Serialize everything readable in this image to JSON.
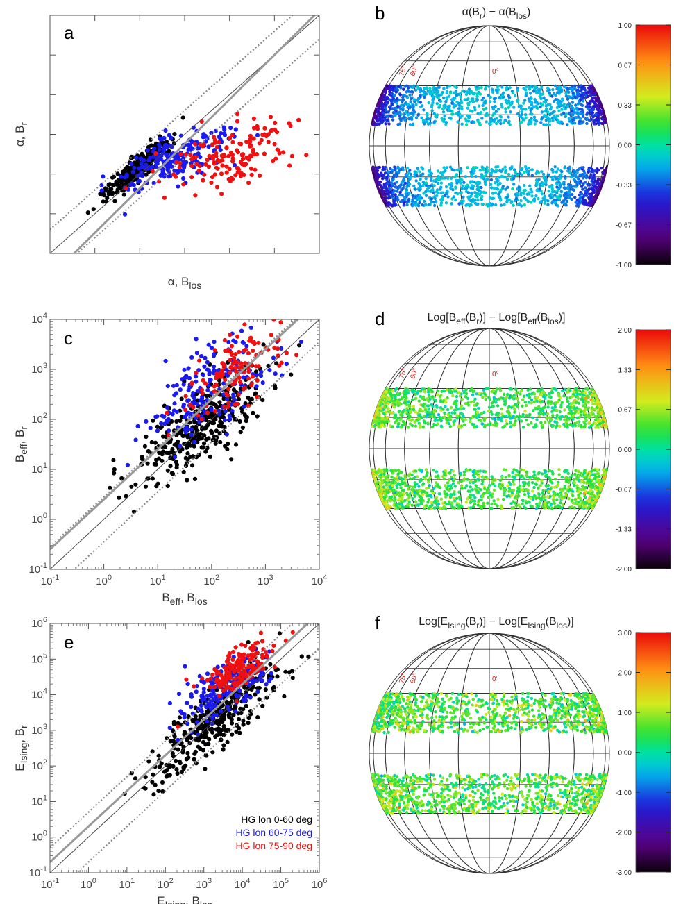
{
  "chart_data": [
    {
      "panel": "a",
      "type": "scatter",
      "xlabel_main": "α, B",
      "xlabel_sub": "los",
      "ylabel_main": "α, B",
      "ylabel_sub": "r",
      "xlim": [
        0.5,
        3.5
      ],
      "ylim": [
        0.5,
        3.5
      ],
      "scale": "linear",
      "xticks": [
        "0.5",
        "1.0",
        "1.5",
        "2.0",
        "2.5",
        "3.0",
        "3.5"
      ],
      "yticks": [
        "0.5",
        "1.0",
        "1.5",
        "2.0",
        "2.5",
        "3.0",
        "3.5"
      ],
      "reference_lines": {
        "identity": "y = x",
        "dotted_offset": 0.3,
        "gray_fit_slope": 1.12,
        "gray_fit_intercept": -0.36
      },
      "series": [
        {
          "color": "#000000",
          "center": [
            1.45,
            1.55
          ],
          "spread": [
            0.17,
            0.17
          ],
          "corr": 0.9,
          "count": 320
        },
        {
          "color": "#1a1aee",
          "center": [
            1.9,
            1.7
          ],
          "spread": [
            0.3,
            0.2
          ],
          "corr": 0.7,
          "count": 220
        },
        {
          "color": "#ee1111",
          "center": [
            2.5,
            1.7
          ],
          "spread": [
            0.35,
            0.22
          ],
          "corr": 0.4,
          "count": 160
        }
      ]
    },
    {
      "panel": "c",
      "type": "scatter",
      "xlabel_main": "B",
      "xlabel_sub": "eff",
      "xlabel_tail": ", B",
      "xlabel_sub2": "los",
      "ylabel_main": "B",
      "ylabel_sub": "eff",
      "ylabel_tail": ", B",
      "ylabel_sub2": "r",
      "xlim": [
        -1,
        4
      ],
      "ylim": [
        -1,
        4
      ],
      "scale": "log10",
      "xticks": [
        {
          "base": "10",
          "exp": "-1"
        },
        {
          "base": "10",
          "exp": "0"
        },
        {
          "base": "10",
          "exp": "1"
        },
        {
          "base": "10",
          "exp": "2"
        },
        {
          "base": "10",
          "exp": "3"
        },
        {
          "base": "10",
          "exp": "4"
        }
      ],
      "yticks": [
        {
          "base": "10",
          "exp": "-1"
        },
        {
          "base": "10",
          "exp": "0"
        },
        {
          "base": "10",
          "exp": "1"
        },
        {
          "base": "10",
          "exp": "2"
        },
        {
          "base": "10",
          "exp": "3"
        },
        {
          "base": "10",
          "exp": "4"
        }
      ],
      "reference_lines": {
        "identity": "y = x",
        "dotted_offset": 0.45,
        "gray_fit_slope": 1.0,
        "gray_fit_intercept": 0.4
      },
      "series": [
        {
          "color": "#000000",
          "center": [
            1.8,
            1.9
          ],
          "spread": [
            0.6,
            0.55
          ],
          "corr": 0.75,
          "count": 340
        },
        {
          "color": "#1a1aee",
          "center": [
            2.0,
            2.6
          ],
          "spread": [
            0.55,
            0.5
          ],
          "corr": 0.6,
          "count": 200
        },
        {
          "color": "#ee1111",
          "center": [
            2.4,
            3.0
          ],
          "spread": [
            0.45,
            0.45
          ],
          "corr": 0.55,
          "count": 130
        }
      ]
    },
    {
      "panel": "e",
      "type": "scatter",
      "xlabel_main": "E",
      "xlabel_sub": "Ising",
      "xlabel_tail": ", B",
      "xlabel_sub2": "los",
      "ylabel_main": "E",
      "ylabel_sub": "Ising",
      "ylabel_tail": ", B",
      "ylabel_sub2": "r",
      "xlim": [
        -1,
        6
      ],
      "ylim": [
        -1,
        6
      ],
      "scale": "log10",
      "xticks": [
        {
          "base": "10",
          "exp": "-1"
        },
        {
          "base": "10",
          "exp": "0"
        },
        {
          "base": "10",
          "exp": "1"
        },
        {
          "base": "10",
          "exp": "2"
        },
        {
          "base": "10",
          "exp": "3"
        },
        {
          "base": "10",
          "exp": "4"
        },
        {
          "base": "10",
          "exp": "5"
        },
        {
          "base": "10",
          "exp": "6"
        }
      ],
      "yticks": [
        {
          "base": "10",
          "exp": "-1"
        },
        {
          "base": "10",
          "exp": "0"
        },
        {
          "base": "10",
          "exp": "1"
        },
        {
          "base": "10",
          "exp": "2"
        },
        {
          "base": "10",
          "exp": "3"
        },
        {
          "base": "10",
          "exp": "4"
        },
        {
          "base": "10",
          "exp": "5"
        },
        {
          "base": "10",
          "exp": "6"
        }
      ],
      "reference_lines": {
        "identity": "y = x",
        "dotted_offset": 0.7,
        "gray_fit_slope": 1.0,
        "gray_fit_intercept": 0.3
      },
      "series": [
        {
          "color": "#000000",
          "center": [
            3.3,
            3.3
          ],
          "spread": [
            0.8,
            0.8
          ],
          "corr": 0.85,
          "count": 360
        },
        {
          "color": "#1a1aee",
          "center": [
            3.6,
            4.2
          ],
          "spread": [
            0.6,
            0.5
          ],
          "corr": 0.7,
          "count": 190
        },
        {
          "color": "#ee1111",
          "center": [
            3.9,
            4.7
          ],
          "spread": [
            0.45,
            0.35
          ],
          "corr": 0.6,
          "count": 190
        }
      ],
      "legend": [
        {
          "label": "HG lon 0-60 deg",
          "color": "#000000"
        },
        {
          "label": "HG lon 60-75 deg",
          "color": "#1a1aee"
        },
        {
          "label": "HG lon 75-90 deg",
          "color": "#ee1111"
        }
      ]
    },
    {
      "panel": "b",
      "type": "scatter",
      "projection": "orthographic-disk",
      "title_parts": [
        "α(B",
        "r",
        ") − α(B",
        "los",
        ")"
      ],
      "grid_labels": [
        "75°",
        "60°",
        "0°"
      ],
      "colorbar": {
        "min": -1.0,
        "max": 1.0,
        "ticks": [
          "1.00",
          "0.67",
          "0.33",
          "0.00",
          "-0.33",
          "-0.67",
          "-1.00"
        ]
      },
      "values": {
        "center_mean": -0.15,
        "limb_mean": -0.9,
        "spread": 0.06
      },
      "bands_deg": [
        [
          10,
          30
        ],
        [
          -30,
          -10
        ]
      ]
    },
    {
      "panel": "d",
      "type": "scatter",
      "projection": "orthographic-disk",
      "title_parts": [
        "Log[B",
        "eff",
        "(B",
        "r",
        ")] − Log[B",
        "eff",
        "(B",
        "los",
        ")]"
      ],
      "grid_labels": [
        "75°",
        "60°",
        "0°"
      ],
      "colorbar": {
        "min": -2.0,
        "max": 2.0,
        "ticks": [
          "2.00",
          "1.33",
          "0.67",
          "0.00",
          "-0.67",
          "-1.33",
          "-2.00"
        ]
      },
      "values": {
        "center_mean": 0.3,
        "limb_mean": 0.8,
        "spread": 0.25
      },
      "bands_deg": [
        [
          10,
          30
        ],
        [
          -30,
          -10
        ]
      ]
    },
    {
      "panel": "f",
      "type": "scatter",
      "projection": "orthographic-disk",
      "title_parts": [
        "Log[E",
        "Ising",
        "(B",
        "r",
        ")] − Log[E",
        "Ising",
        "(B",
        "los",
        ")]"
      ],
      "grid_labels": [
        "75°",
        "60°",
        "0°"
      ],
      "colorbar": {
        "min": -3.0,
        "max": 3.0,
        "ticks": [
          "3.00",
          "2.00",
          "1.00",
          "0.00",
          "-1.00",
          "-2.00",
          "-3.00"
        ]
      },
      "values": {
        "center_mean": 0.6,
        "limb_mean": 0.7,
        "spread": 0.45
      },
      "bands_deg": [
        [
          10,
          30
        ],
        [
          -30,
          -10
        ]
      ]
    }
  ]
}
